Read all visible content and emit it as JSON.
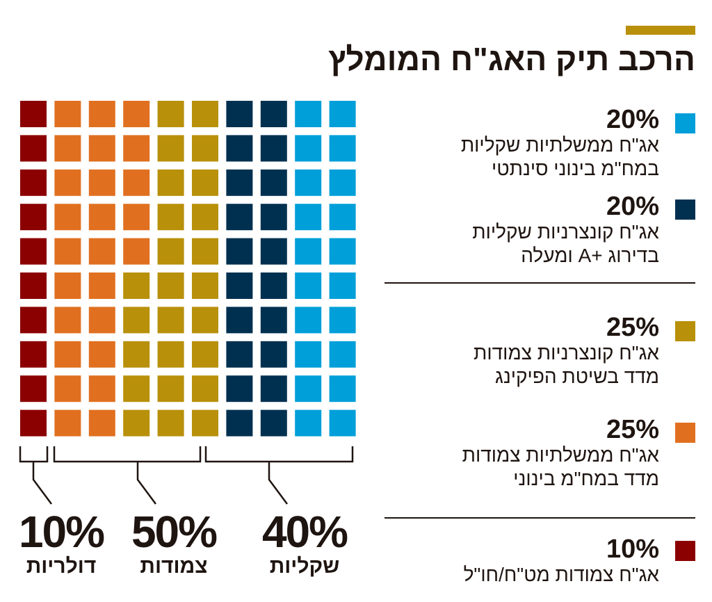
{
  "title": "הרכב תיק האג\"ח המומלץ",
  "colors": {
    "accent": "#b8900a",
    "text": "#1e1410"
  },
  "chart_data": {
    "type": "waffle",
    "grid": {
      "rows": 10,
      "cols": 10
    },
    "fill_order": "column-major, left to right, top to bottom",
    "series": [
      {
        "name": "אג\"ח צמודות מט\"ח/חו\"ל",
        "value": 10,
        "color": "#8b0000"
      },
      {
        "name": "אג\"ח ממשלתיות צמודות מדד במח\"מ בינוני",
        "value": 25,
        "color": "#e07020"
      },
      {
        "name": "אג\"ח קונצרניות צמודות מדד בשיטת הפיקינג",
        "value": 25,
        "color": "#b8900a"
      },
      {
        "name": "אג\"ח קונצרניות שקליות בדירוג +A ומעלה",
        "value": 20,
        "color": "#003050"
      },
      {
        "name": "אג\"ח ממשלתיות שקליות במח\"מ בינוני סינתטי",
        "value": 20,
        "color": "#009fd9"
      }
    ],
    "groups": [
      {
        "pct": "10%",
        "label": "דולריות",
        "value": 10
      },
      {
        "pct": "50%",
        "label": "צמודות",
        "value": 50
      },
      {
        "pct": "40%",
        "label": "שקליות",
        "value": 40
      }
    ]
  },
  "legend": [
    {
      "pct": "20%",
      "line1": "אג\"ח ממשלתיות שקליות",
      "line2": "במח\"מ בינוני סינתטי",
      "color": "#009fd9"
    },
    {
      "pct": "20%",
      "line1": "אג\"ח קונצרניות שקליות",
      "line2": "בדירוג +A ומעלה",
      "color": "#003050"
    },
    {
      "pct": "25%",
      "line1": "אג\"ח קונצרניות צמודות",
      "line2": "מדד בשיטת הפיקינג",
      "color": "#b8900a"
    },
    {
      "pct": "25%",
      "line1": "אג\"ח ממשלתיות צמודות",
      "line2": "מדד במח\"מ בינוני",
      "color": "#e07020"
    },
    {
      "pct": "10%",
      "line1": "אג\"ח צמודות מט\"ח/חו\"ל",
      "line2": "",
      "color": "#8b0000"
    }
  ]
}
